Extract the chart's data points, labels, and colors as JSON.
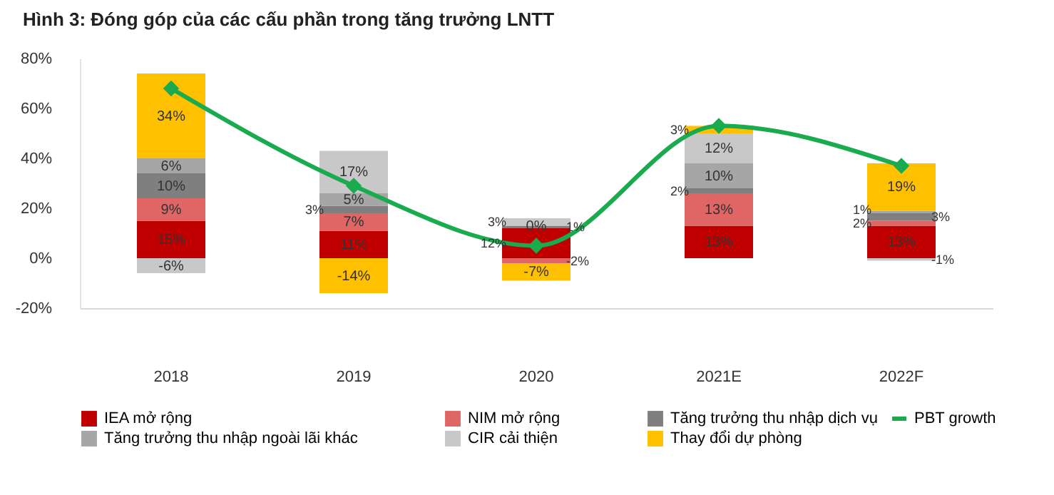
{
  "chart_data": {
    "type": "bar",
    "stacked": true,
    "title": "Hình 3:  Đóng góp của các cấu phần trong tăng trưởng LNTT",
    "categories": [
      "2018",
      "2019",
      "2020",
      "2021E",
      "2022F"
    ],
    "series": [
      {
        "name": "IEA mở rộng",
        "color": "#c00000",
        "values": [
          15,
          11,
          12,
          13,
          13
        ],
        "value_labels": [
          "15%",
          "11%",
          "12%",
          "13%",
          "13%"
        ]
      },
      {
        "name": "NIM mở rộng",
        "color": "#e06666",
        "values": [
          9,
          7,
          -2,
          13,
          2
        ],
        "value_labels": [
          "9%",
          "7%",
          "-2%",
          "13%",
          "2%"
        ]
      },
      {
        "name": "Tăng trưởng thu nhập dịch vụ",
        "color": "#7f7f7f",
        "values": [
          10,
          3,
          1,
          2,
          3
        ],
        "value_labels": [
          "10%",
          "3%",
          "1%",
          "2%",
          "3%"
        ]
      },
      {
        "name": "Tăng trưởng thu nhập ngoài lãi khác",
        "color": "#a6a6a6",
        "values": [
          6,
          5,
          0,
          10,
          1
        ],
        "value_labels": [
          "6%",
          "5%",
          "0%",
          "10%",
          "1%"
        ]
      },
      {
        "name": "CIR cải thiện",
        "color": "#c8c8c8",
        "values": [
          -6,
          17,
          3,
          12,
          -1
        ],
        "value_labels": [
          "-6%",
          "17%",
          "3%",
          "12%",
          "-1%"
        ]
      },
      {
        "name": "Thay đổi dự phòng",
        "color": "#ffc000",
        "values": [
          34,
          -14,
          -7,
          3,
          19
        ],
        "value_labels": [
          "34%",
          "-14%",
          "-7%",
          "3%",
          "19%"
        ]
      },
      {
        "name": "PBT growth",
        "type": "line",
        "color": "#1aab4f",
        "marker": "diamond",
        "values": [
          68,
          29,
          5,
          53,
          37
        ]
      }
    ],
    "ylim": [
      -20,
      80
    ],
    "yticks": [
      {
        "value": -20,
        "label": "-20%"
      },
      {
        "value": 0,
        "label": "0%"
      },
      {
        "value": 20,
        "label": "20%"
      },
      {
        "value": 40,
        "label": "40%"
      },
      {
        "value": 60,
        "label": "60%"
      },
      {
        "value": 80,
        "label": "80%"
      }
    ],
    "grid": false,
    "legend": "bottom"
  }
}
